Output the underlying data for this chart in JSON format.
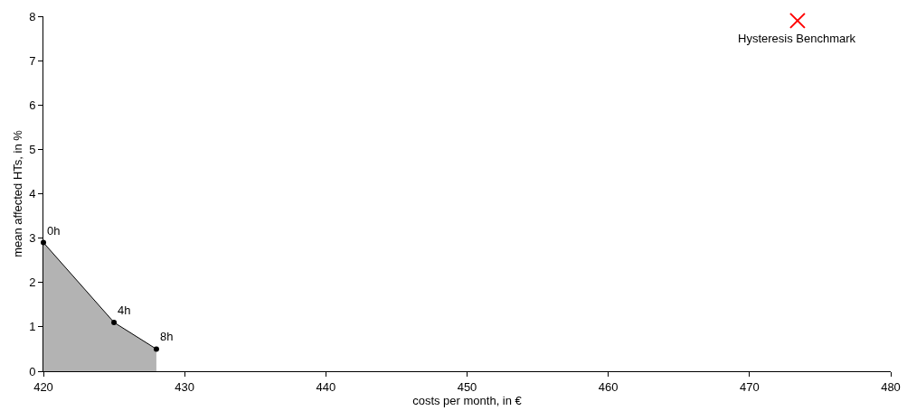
{
  "chart_data": {
    "type": "area",
    "xlabel": "costs per month, in €",
    "ylabel": "mean affected HTs, in %",
    "xlim": [
      420,
      480
    ],
    "xticks": [
      420,
      430,
      440,
      450,
      460,
      470,
      480
    ],
    "ylim": [
      0,
      8
    ],
    "yticks": [
      0,
      1,
      2,
      3,
      4,
      5,
      6,
      7,
      8
    ],
    "grid": false,
    "legend": false,
    "series": [
      {
        "color": "#b3b3b3",
        "x": [
          420,
          425,
          428
        ],
        "values": [
          2.9,
          1.1,
          0.5
        ],
        "marker": "circle"
      },
      {
        "type": "scatter",
        "name": "Hysteresis Benchmark",
        "color": "#ff0000",
        "x": [
          473.4
        ],
        "values": [
          7.9
        ],
        "marker": "cross"
      }
    ],
    "annotations": [
      {
        "text": "0h",
        "x": 420,
        "y": 2.9
      },
      {
        "text": "4h",
        "x": 425,
        "y": 1.1
      },
      {
        "text": "8h",
        "x": 428,
        "y": 0.5
      }
    ]
  }
}
